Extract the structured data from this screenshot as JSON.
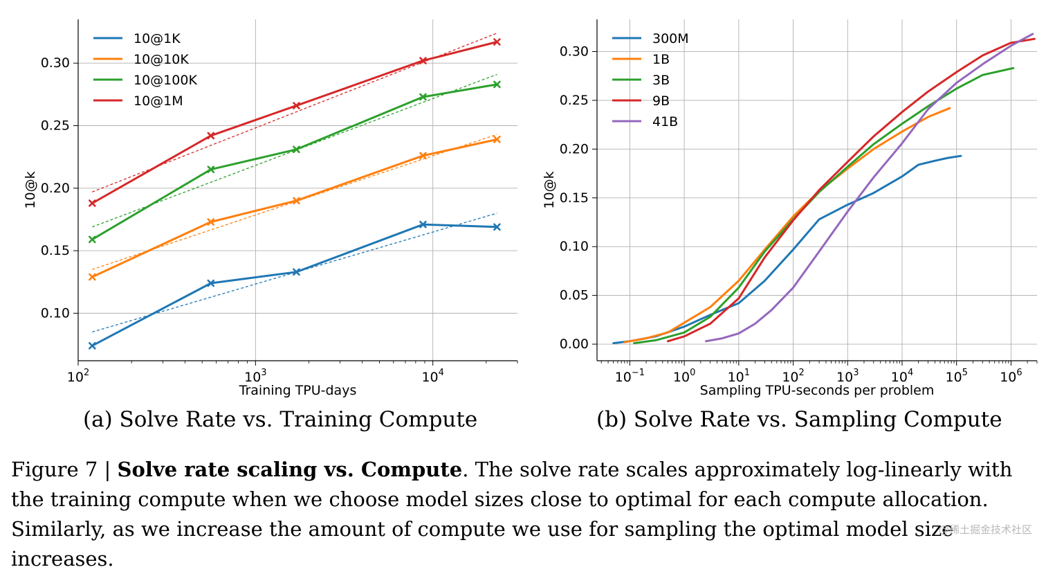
{
  "chart_data": [
    {
      "type": "line",
      "xscale": "log",
      "xlim": [
        100,
        30000
      ],
      "ylim": [
        0.062,
        0.335
      ],
      "xlabel": "Training TPU-days",
      "ylabel": "10@k",
      "xticks": [
        {
          "value": 100,
          "base": "10",
          "exp": "2"
        },
        {
          "value": 1000,
          "base": "10",
          "exp": "3"
        },
        {
          "value": 10000,
          "base": "10",
          "exp": "4"
        }
      ],
      "yticks": [
        {
          "value": 0.1,
          "label": "0.10"
        },
        {
          "value": 0.15,
          "label": "0.15"
        },
        {
          "value": 0.2,
          "label": "0.20"
        },
        {
          "value": 0.25,
          "label": "0.25"
        },
        {
          "value": 0.3,
          "label": "0.30"
        }
      ],
      "legend_position": "top-left",
      "markers": true,
      "series": [
        {
          "name": "10@1K",
          "color": "#1f77b4",
          "x": [
            120,
            560,
            1700,
            8800,
            23000
          ],
          "y": [
            0.074,
            0.124,
            0.133,
            0.171,
            0.169
          ],
          "fit": [
            [
              120,
              0.085
            ],
            [
              23000,
              0.18
            ]
          ]
        },
        {
          "name": "10@10K",
          "color": "#ff7f0e",
          "x": [
            120,
            560,
            1700,
            8800,
            23000
          ],
          "y": [
            0.129,
            0.173,
            0.19,
            0.226,
            0.239
          ],
          "fit": [
            [
              120,
              0.135
            ],
            [
              23000,
              0.243
            ]
          ]
        },
        {
          "name": "10@100K",
          "color": "#2ca02c",
          "x": [
            120,
            560,
            1700,
            8800,
            23000
          ],
          "y": [
            0.159,
            0.215,
            0.231,
            0.273,
            0.283
          ],
          "fit": [
            [
              120,
              0.169
            ],
            [
              23000,
              0.291
            ]
          ]
        },
        {
          "name": "10@1M",
          "color": "#d62728",
          "x": [
            120,
            560,
            1700,
            8800,
            23000
          ],
          "y": [
            0.188,
            0.242,
            0.266,
            0.302,
            0.317
          ],
          "fit": [
            [
              120,
              0.197
            ],
            [
              23000,
              0.324
            ]
          ]
        }
      ],
      "caption": "(a) Solve Rate vs. Training Compute"
    },
    {
      "type": "line",
      "xscale": "log",
      "xlim": [
        0.025,
        3000000
      ],
      "ylim": [
        -0.017,
        0.333
      ],
      "xlabel": "Sampling TPU-seconds per problem",
      "ylabel": "10@k",
      "xticks": [
        {
          "value": 0.1,
          "base": "10",
          "exp": "−1"
        },
        {
          "value": 1,
          "base": "10",
          "exp": "0"
        },
        {
          "value": 10,
          "base": "10",
          "exp": "1"
        },
        {
          "value": 100,
          "base": "10",
          "exp": "2"
        },
        {
          "value": 1000,
          "base": "10",
          "exp": "3"
        },
        {
          "value": 10000,
          "base": "10",
          "exp": "4"
        },
        {
          "value": 100000,
          "base": "10",
          "exp": "5"
        },
        {
          "value": 1000000,
          "base": "10",
          "exp": "6"
        }
      ],
      "yticks": [
        {
          "value": 0.0,
          "label": "0.00"
        },
        {
          "value": 0.05,
          "label": "0.05"
        },
        {
          "value": 0.1,
          "label": "0.10"
        },
        {
          "value": 0.15,
          "label": "0.15"
        },
        {
          "value": 0.2,
          "label": "0.20"
        },
        {
          "value": 0.25,
          "label": "0.25"
        },
        {
          "value": 0.3,
          "label": "0.30"
        }
      ],
      "legend_position": "top-left",
      "markers": false,
      "series": [
        {
          "name": "300M",
          "color": "#1f77b4",
          "x": [
            0.05,
            0.1,
            0.3,
            1,
            3,
            10,
            30,
            100,
            300,
            1000,
            3000,
            10000,
            20000,
            40000,
            70000,
            120000
          ],
          "y": [
            0.001,
            0.003,
            0.008,
            0.018,
            0.03,
            0.042,
            0.065,
            0.097,
            0.128,
            0.143,
            0.155,
            0.172,
            0.184,
            0.188,
            0.191,
            0.193
          ]
        },
        {
          "name": "1B",
          "color": "#ff7f0e",
          "x": [
            0.08,
            0.2,
            0.5,
            1,
            3,
            10,
            30,
            100,
            300,
            1000,
            3000,
            10000,
            30000,
            75000
          ],
          "y": [
            0.002,
            0.006,
            0.012,
            0.022,
            0.038,
            0.065,
            0.097,
            0.131,
            0.157,
            0.18,
            0.2,
            0.218,
            0.233,
            0.242
          ]
        },
        {
          "name": "3B",
          "color": "#2ca02c",
          "x": [
            0.12,
            0.3,
            1,
            3,
            10,
            30,
            100,
            300,
            1000,
            3000,
            10000,
            30000,
            100000,
            300000,
            1100000
          ],
          "y": [
            0.001,
            0.004,
            0.012,
            0.028,
            0.058,
            0.095,
            0.128,
            0.156,
            0.182,
            0.205,
            0.226,
            0.244,
            0.262,
            0.276,
            0.283
          ]
        },
        {
          "name": "9B",
          "color": "#d62728",
          "x": [
            0.5,
            1,
            3,
            10,
            30,
            100,
            300,
            1000,
            3000,
            10000,
            30000,
            100000,
            300000,
            1000000,
            2700000
          ],
          "y": [
            0.003,
            0.008,
            0.021,
            0.047,
            0.089,
            0.127,
            0.158,
            0.187,
            0.213,
            0.238,
            0.259,
            0.279,
            0.296,
            0.309,
            0.313
          ]
        },
        {
          "name": "41B",
          "color": "#9467bd",
          "x": [
            2.5,
            5,
            10,
            20,
            40,
            100,
            300,
            1000,
            3000,
            10000,
            30000,
            100000,
            300000,
            1000000,
            2500000
          ],
          "y": [
            0.003,
            0.006,
            0.011,
            0.021,
            0.035,
            0.058,
            0.095,
            0.136,
            0.171,
            0.206,
            0.241,
            0.268,
            0.287,
            0.306,
            0.318
          ]
        }
      ],
      "caption": "(b) Solve Rate vs. Sampling Compute"
    }
  ],
  "figure_caption": {
    "prefix": "Figure 7 | ",
    "bold": "Solve rate scaling vs. Compute",
    "rest": ". The solve rate scales approximately log-linearly with the training compute when we choose model sizes close to optimal for each compute allocation. Similarly, as we increase the amount of compute we use for sampling the optimal model size increases."
  },
  "watermark": "@稀土掘金技术社区"
}
